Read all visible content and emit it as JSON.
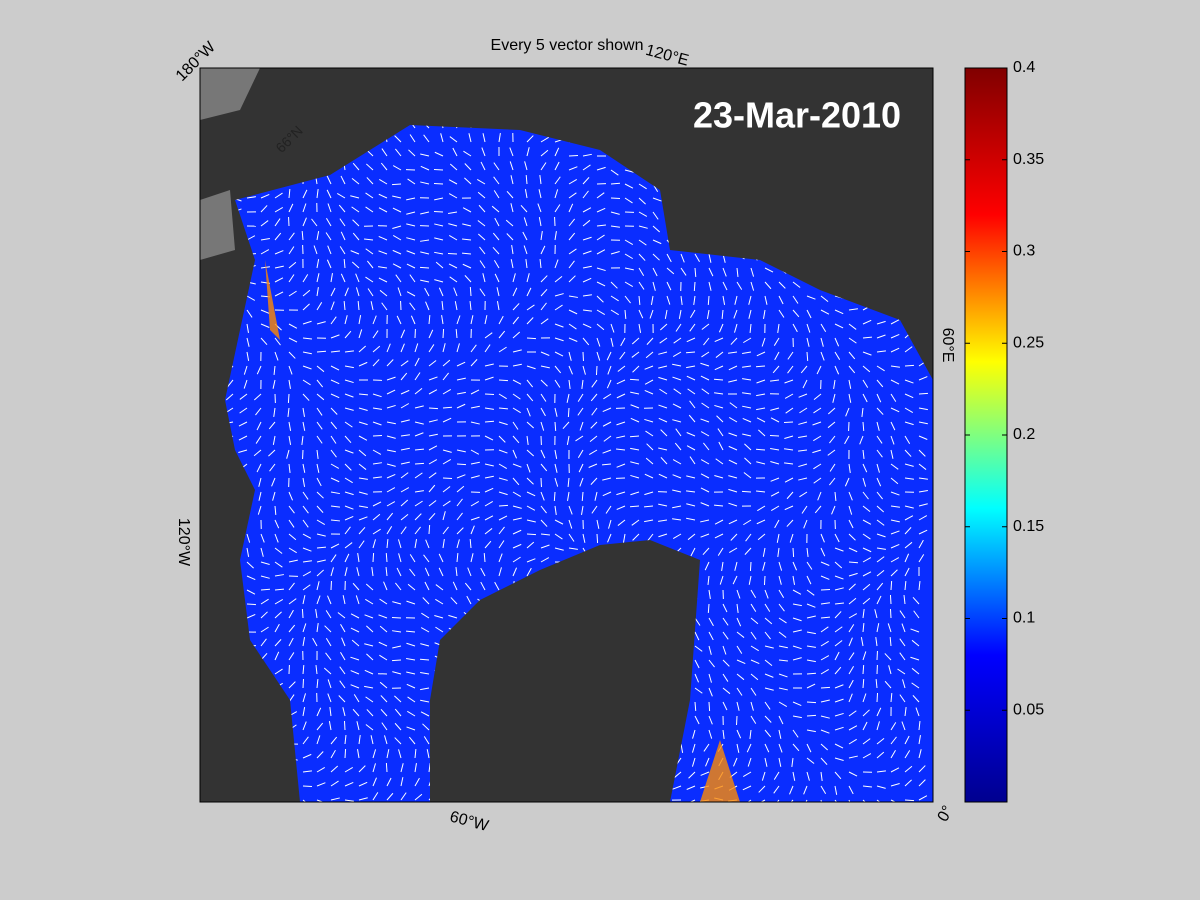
{
  "chart_data": {
    "type": "map",
    "title": "Every 5 vector shown",
    "date_label": "23-Mar-2010",
    "map_labels": [
      "180°W",
      "120°E",
      "60°E",
      "0°",
      "60°W",
      "120°W",
      "66°N"
    ],
    "colorbar": {
      "ylim": [
        0,
        0.4
      ],
      "yticks": [
        0.05,
        0.1,
        0.15,
        0.2,
        0.25,
        0.3,
        0.35,
        0.4
      ],
      "colormap": [
        "#00008f",
        "#0000ff",
        "#00ffff",
        "#ffff00",
        "#ff0000",
        "#800000"
      ]
    },
    "ocean_color": "#0a2dff",
    "land_color": "#333333"
  }
}
